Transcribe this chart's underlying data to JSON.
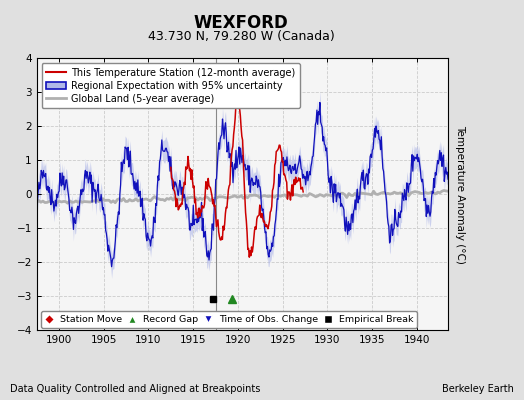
{
  "title": "WEXFORD",
  "subtitle": "43.730 N, 79.280 W (Canada)",
  "xlabel_note": "Data Quality Controlled and Aligned at Breakpoints",
  "credit": "Berkeley Earth",
  "xlim": [
    1897.5,
    1943.5
  ],
  "ylim": [
    -4,
    4
  ],
  "yticks": [
    -4,
    -3,
    -2,
    -1,
    0,
    1,
    2,
    3,
    4
  ],
  "xticks": [
    1900,
    1905,
    1910,
    1915,
    1920,
    1925,
    1930,
    1935,
    1940
  ],
  "ylabel": "Temperature Anomaly (°C)",
  "bg_color": "#e0e0e0",
  "plot_bg_color": "#f5f5f5",
  "red_color": "#cc0000",
  "blue_color": "#1111bb",
  "blue_shade_color": "#b0b8e8",
  "gray_color": "#b0b0b0",
  "vertical_line_x": 1917.5,
  "empirical_break_x": 1917.2,
  "record_gap_x": 1919.3,
  "marker_y": -3.1,
  "red_start": 1912.5,
  "red_end": 1927.5
}
